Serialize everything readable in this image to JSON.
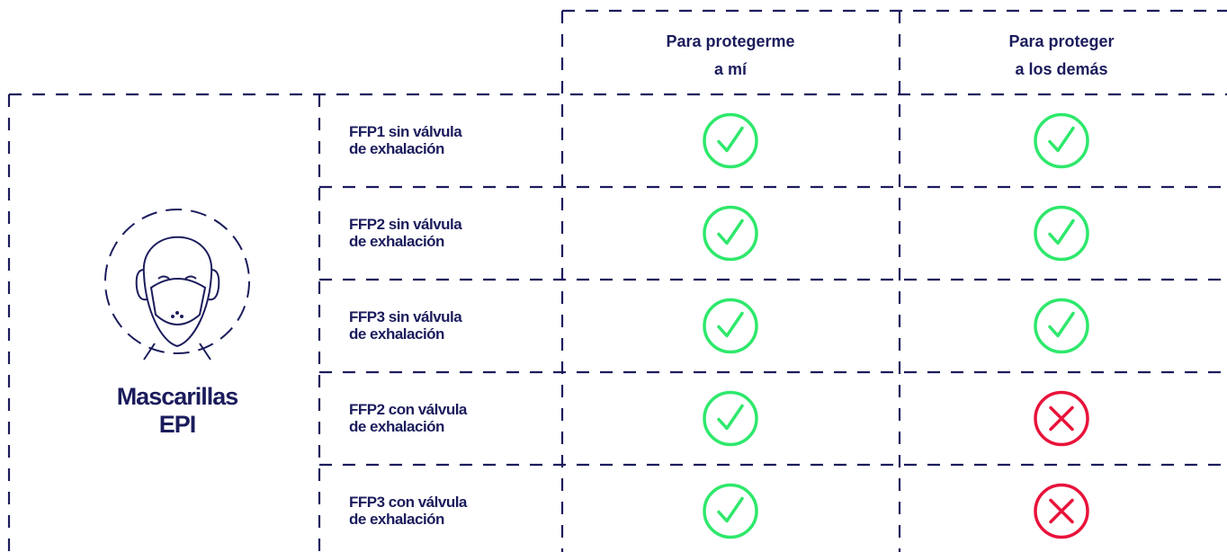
{
  "header": {
    "columns": [
      [
        "Para protegerme",
        "a mí"
      ],
      [
        "Para proteger",
        "a los demás"
      ]
    ]
  },
  "group": {
    "label": [
      "Mascarillas",
      "EPI"
    ]
  },
  "rows": [
    {
      "label": [
        "FFP1 sin válvula",
        "de exhalación"
      ],
      "protects_self": true,
      "protects_others": true
    },
    {
      "label": [
        "FFP2 sin válvula",
        "de exhalación"
      ],
      "protects_self": true,
      "protects_others": true
    },
    {
      "label": [
        "FFP3 sin válvula",
        "de exhalación"
      ],
      "protects_self": true,
      "protects_others": true
    },
    {
      "label": [
        "FFP2 con válvula",
        "de exhalación"
      ],
      "protects_self": true,
      "protects_others": false
    },
    {
      "label": [
        "FFP3 con válvula",
        "de exhalación"
      ],
      "protects_self": true,
      "protects_others": false
    }
  ]
}
